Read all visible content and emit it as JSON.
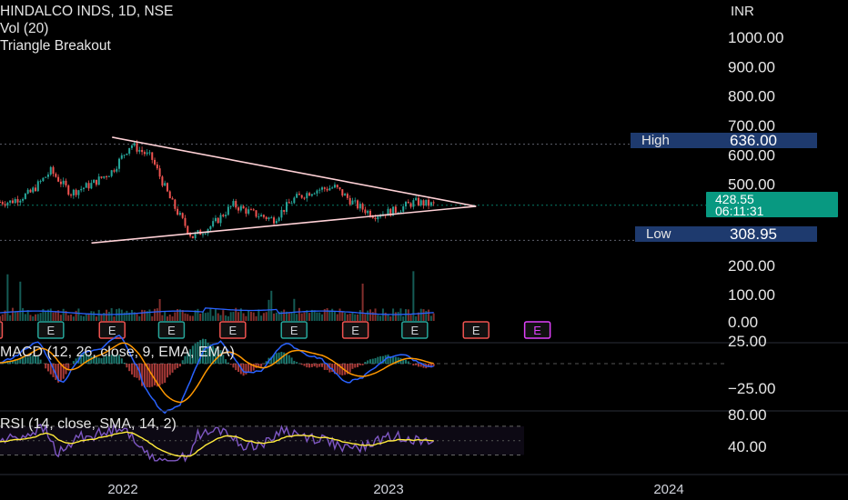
{
  "header": {
    "symbol_line": "HINDALCO INDS, 1D, NSE",
    "indicator_vol": "Vol (20)",
    "indicator_idea": "Triangle Breakout"
  },
  "price_axis": {
    "currency": "INR",
    "ticks": [
      "1000.00",
      "900.00",
      "800.00",
      "700.00",
      "600.00",
      "500.00"
    ],
    "volume_ticks": [
      "200.00",
      "100.00",
      "0.00"
    ],
    "macd_ticks": [
      "25.00",
      "−25.00"
    ],
    "rsi_ticks": [
      "80.00",
      "40.00"
    ]
  },
  "markers": {
    "high_label": "High",
    "high_value": "636.00",
    "low_label": "Low",
    "low_value": "308.95",
    "last_price": "428.55",
    "countdown": "06:11:31"
  },
  "macd_label": "MACD (12, 26, close, 9, EMA, EMA)",
  "rsi_label": "RSI (14, close, SMA, 14, 2)",
  "time_axis": [
    "2022",
    "2023",
    "2024"
  ],
  "earnings_marker": "E",
  "colors": {
    "up": "#26a69a",
    "down": "#ef5350",
    "trendline": "#ffd1d6",
    "macd": "#2962ff",
    "signal": "#ff9800",
    "rsi": "#7e57c2",
    "rsi_ma": "#ffeb3b",
    "volume_ma": "#2962ff",
    "high_low_badge": "#1e3a6e",
    "price_badge": "#089981"
  },
  "chart_data": {
    "type": "candlestick",
    "title": "HINDALCO INDS, 1D, NSE",
    "ylabel": "INR",
    "ylim": [
      300,
      1050
    ],
    "x_ticks": [
      "2022",
      "2023",
      "2024"
    ],
    "price_path": [
      {
        "x": "2021-09",
        "y": 440
      },
      {
        "x": "2021-10",
        "y": 470
      },
      {
        "x": "2021-11",
        "y": 545
      },
      {
        "x": "2021-12",
        "y": 470
      },
      {
        "x": "2022-01",
        "y": 500
      },
      {
        "x": "2022-02",
        "y": 545
      },
      {
        "x": "2022-03",
        "y": 636
      },
      {
        "x": "2022-04",
        "y": 590
      },
      {
        "x": "2022-05",
        "y": 440
      },
      {
        "x": "2022-06",
        "y": 320
      },
      {
        "x": "2022-07",
        "y": 360
      },
      {
        "x": "2022-08",
        "y": 430
      },
      {
        "x": "2022-09",
        "y": 400
      },
      {
        "x": "2022-10",
        "y": 380
      },
      {
        "x": "2022-11",
        "y": 450
      },
      {
        "x": "2022-12",
        "y": 480
      },
      {
        "x": "2023-01",
        "y": 490
      },
      {
        "x": "2023-02",
        "y": 430
      },
      {
        "x": "2023-03",
        "y": 395
      },
      {
        "x": "2023-04",
        "y": 410
      },
      {
        "x": "2023-05",
        "y": 440
      },
      {
        "x": "2023-06",
        "y": 428.55
      }
    ],
    "high": 636.0,
    "low": 308.95,
    "last": 428.55,
    "triangle": {
      "upper": [
        {
          "x": "2022-02",
          "y": 660
        },
        {
          "x": "2023-08",
          "y": 425
        }
      ],
      "lower": [
        {
          "x": "2022-01",
          "y": 300
        },
        {
          "x": "2023-08",
          "y": 425
        }
      ]
    },
    "volume_ylim": [
      0,
      260
    ],
    "macd_ticks": [
      25,
      -25
    ],
    "rsi_ylim": [
      30,
      80
    ],
    "rsi_ticks": [
      80,
      40
    ]
  }
}
